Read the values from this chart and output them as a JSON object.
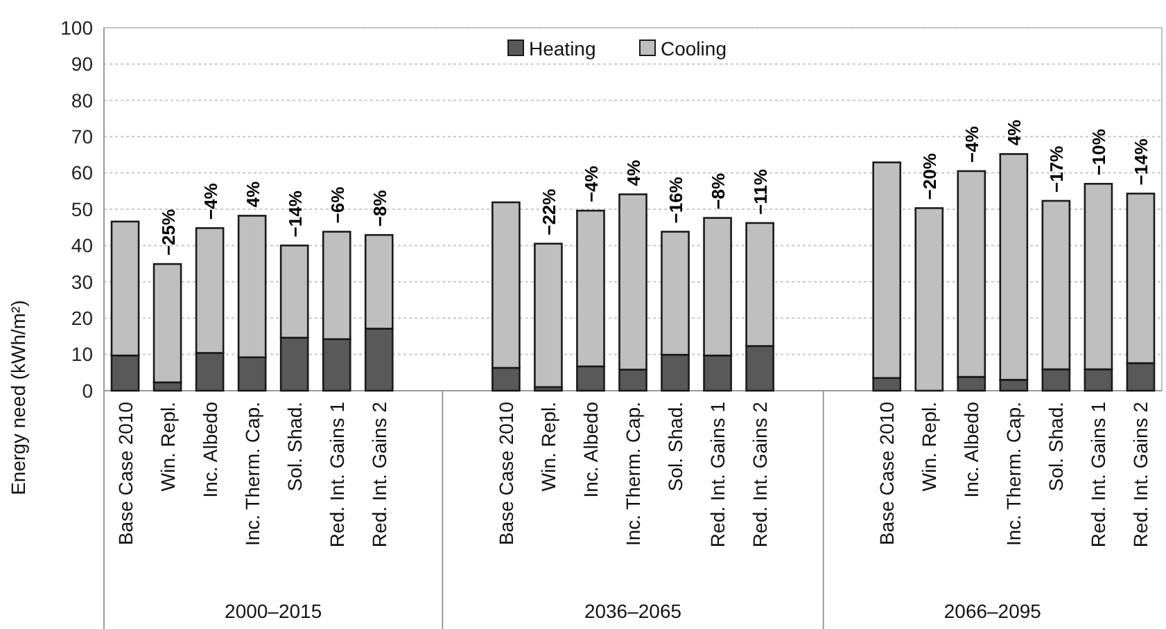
{
  "chart_data": {
    "type": "bar",
    "stacked": true,
    "ylabel": "Energy need (kWh/m²)",
    "categories": [
      "Base Case 2010",
      "Win. Repl.",
      "Inc. Albedo",
      "Inc. Therm. Cap.",
      "Sol. Shad.",
      "Red. Int. Gains 1",
      "Red. Int. Gains 2",
      null,
      null,
      "Base Case 2010",
      "Win. Repl.",
      "Inc. Albedo",
      "Inc. Therm. Cap.",
      "Sol. Shad.",
      "Red. Int. Gains 1",
      "Red. Int. Gains 2",
      null,
      null,
      "Base Case 2010",
      "Win. Repl.",
      "Inc. Albedo",
      "Inc. Therm. Cap.",
      "Sol. Shad.",
      "Red. Int. Gains 1",
      "Red. Int. Gains 2"
    ],
    "series": [
      {
        "name": "Heating",
        "color": "#595959",
        "values": [
          9.7,
          2.3,
          10.4,
          9.2,
          14.6,
          14.2,
          17.1,
          null,
          null,
          6.3,
          1.0,
          6.7,
          5.8,
          9.9,
          9.7,
          12.3,
          null,
          null,
          3.5,
          0,
          3.8,
          3.0,
          5.9,
          5.9,
          7.6
        ]
      },
      {
        "name": "Cooling",
        "color": "#bfbfbf",
        "values": [
          36.9,
          32.6,
          34.4,
          39.0,
          25.4,
          29.6,
          25.8,
          null,
          null,
          45.6,
          39.5,
          42.9,
          48.3,
          33.9,
          37.9,
          33.9,
          null,
          null,
          59.4,
          50.3,
          56.7,
          62.2,
          46.4,
          51.1,
          46.7
        ]
      }
    ],
    "annotations": [
      "2000–2015",
      "2036–2065",
      "2066–2095",
      "−25%",
      "−4%",
      "4%",
      "−14%",
      "−6%",
      "−8%",
      "−22%",
      "−4%",
      "4%",
      "−16%",
      "−8%",
      "−11%",
      "−20%",
      "−4%",
      "4%",
      "−17%",
      "−10%",
      "−14%"
    ],
    "ylim": [
      0,
      100
    ],
    "yticks": [
      0,
      10,
      20,
      30,
      40,
      50,
      60,
      70,
      80,
      90,
      100
    ],
    "grid": "y",
    "legend": "top"
  }
}
